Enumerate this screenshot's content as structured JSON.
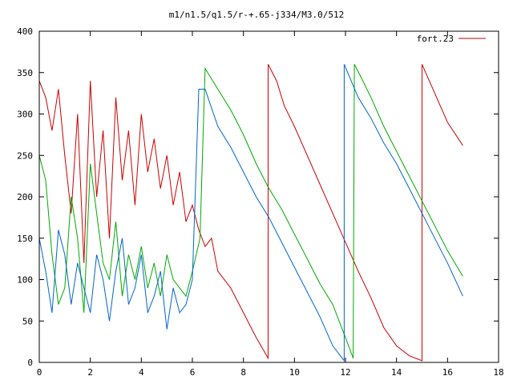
{
  "chart_data": {
    "type": "line",
    "title": "m1/n1.5/q1.5/r-+.65-j334/M3.0/512",
    "xlabel": "",
    "ylabel": "",
    "xlim": [
      0,
      18
    ],
    "ylim": [
      0,
      400
    ],
    "x_ticks": [
      "0",
      "2",
      "4",
      "6",
      "8",
      "10",
      "12",
      "14",
      "16",
      "18"
    ],
    "y_ticks": [
      "0",
      "50",
      "100",
      "150",
      "200",
      "250",
      "300",
      "350",
      "400"
    ],
    "grid": false,
    "legend_position": "top-right",
    "legend": [
      {
        "label": "fort.23",
        "color": "#cc0000"
      }
    ],
    "series": [
      {
        "name": "fort.23",
        "color": "#cc0000",
        "x": [
          0.0,
          0.25,
          0.5,
          0.75,
          1.0,
          1.25,
          1.5,
          1.75,
          2.0,
          2.25,
          2.5,
          2.75,
          3.0,
          3.25,
          3.5,
          3.75,
          4.0,
          4.25,
          4.5,
          4.75,
          5.0,
          5.25,
          5.5,
          5.75,
          6.0,
          6.25,
          6.5,
          6.75,
          7.0,
          7.5,
          8.0,
          8.5,
          8.97,
          8.97,
          9.3,
          9.6,
          10.0,
          10.5,
          11.0,
          11.5,
          12.0,
          12.5,
          13.0,
          13.5,
          14.0,
          14.5,
          15.0,
          15.0,
          15.5,
          16.0,
          16.6
        ],
        "y": [
          340,
          320,
          280,
          330,
          250,
          180,
          300,
          120,
          340,
          200,
          280,
          150,
          320,
          220,
          280,
          190,
          300,
          230,
          270,
          210,
          250,
          190,
          230,
          170,
          190,
          160,
          140,
          150,
          110,
          90,
          60,
          30,
          5,
          360,
          340,
          310,
          285,
          250,
          215,
          180,
          145,
          110,
          78,
          42,
          20,
          8,
          2,
          360,
          325,
          290,
          262
        ]
      },
      {
        "name": "",
        "color": "#00aa00",
        "x": [
          0.0,
          0.25,
          0.5,
          0.75,
          1.0,
          1.25,
          1.5,
          1.75,
          2.0,
          2.25,
          2.5,
          2.75,
          3.0,
          3.25,
          3.5,
          3.75,
          4.0,
          4.25,
          4.5,
          4.75,
          5.0,
          5.25,
          5.5,
          5.75,
          6.0,
          6.3,
          6.5,
          7.0,
          7.5,
          8.0,
          8.5,
          9.0,
          9.5,
          10.0,
          10.5,
          11.0,
          11.5,
          12.0,
          12.3,
          12.35,
          12.6,
          13.0,
          13.5,
          14.0,
          14.5,
          15.0,
          15.5,
          16.0,
          16.6
        ],
        "y": [
          250,
          220,
          130,
          70,
          90,
          200,
          150,
          60,
          240,
          180,
          120,
          100,
          170,
          80,
          130,
          100,
          140,
          90,
          120,
          80,
          130,
          100,
          90,
          80,
          110,
          150,
          355,
          330,
          305,
          275,
          240,
          210,
          185,
          155,
          125,
          95,
          70,
          30,
          5,
          360,
          345,
          320,
          285,
          255,
          225,
          195,
          165,
          135,
          104
        ]
      },
      {
        "name": "",
        "color": "#0066cc",
        "x": [
          0.0,
          0.25,
          0.5,
          0.75,
          1.0,
          1.25,
          1.5,
          1.75,
          2.0,
          2.25,
          2.5,
          2.75,
          3.0,
          3.25,
          3.5,
          3.75,
          4.0,
          4.25,
          4.5,
          4.75,
          5.0,
          5.25,
          5.5,
          5.75,
          6.0,
          6.25,
          6.5,
          7.0,
          7.5,
          8.0,
          8.5,
          9.0,
          9.5,
          10.0,
          10.5,
          11.0,
          11.5,
          11.95,
          11.95,
          12.5,
          13.0,
          13.5,
          14.0,
          14.5,
          15.0,
          15.5,
          16.0,
          16.6
        ],
        "y": [
          150,
          110,
          60,
          160,
          130,
          70,
          120,
          90,
          60,
          130,
          100,
          50,
          110,
          150,
          70,
          90,
          130,
          60,
          80,
          110,
          40,
          90,
          60,
          70,
          100,
          330,
          330,
          285,
          260,
          230,
          200,
          175,
          145,
          115,
          85,
          55,
          20,
          2,
          360,
          320,
          295,
          265,
          240,
          210,
          180,
          150,
          120,
          80
        ]
      }
    ]
  }
}
